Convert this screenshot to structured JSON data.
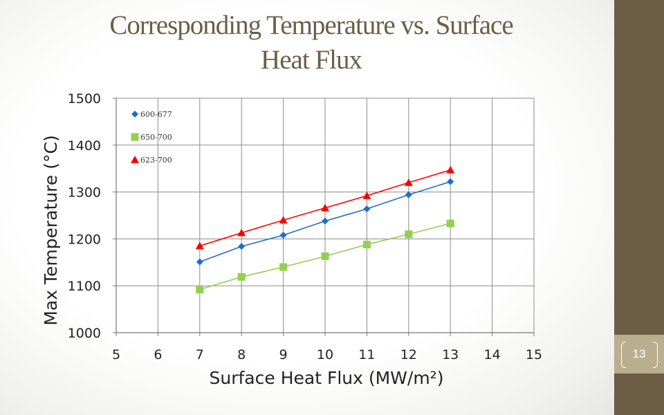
{
  "slide": {
    "title_line1": "Corresponding Temperature vs. Surface",
    "title_line2": "Heat Flux",
    "page_number": "13"
  },
  "colors": {
    "accent": "#6b5e45",
    "page_box": "#b9ae8e"
  },
  "chart_data": {
    "type": "line",
    "title": "Corresponding Temperature vs. Surface Heat Flux",
    "xlabel": "Surface Heat Flux (MW/m²)",
    "ylabel": "Max Temperature (°C)",
    "xlim": [
      5,
      15
    ],
    "ylim": [
      1000,
      1500
    ],
    "xticks": [
      5,
      6,
      7,
      8,
      9,
      10,
      11,
      12,
      13,
      14,
      15
    ],
    "yticks": [
      1000,
      1100,
      1200,
      1300,
      1400,
      1500
    ],
    "grid": true,
    "legend_position": "top-left",
    "x": [
      7,
      8,
      9,
      10,
      11,
      12,
      13
    ],
    "series": [
      {
        "name": "600-677",
        "marker": "diamond",
        "color": "#1f6fc5",
        "values": [
          1151,
          1184,
          1208,
          1238,
          1264,
          1294,
          1322
        ]
      },
      {
        "name": "650-700",
        "marker": "square",
        "color": "#92d050",
        "values": [
          1092,
          1119,
          1140,
          1163,
          1188,
          1210,
          1233
        ]
      },
      {
        "name": "623-700",
        "marker": "triangle",
        "color": "#ff0000",
        "values": [
          1185,
          1213,
          1240,
          1266,
          1292,
          1320,
          1347
        ]
      }
    ]
  }
}
